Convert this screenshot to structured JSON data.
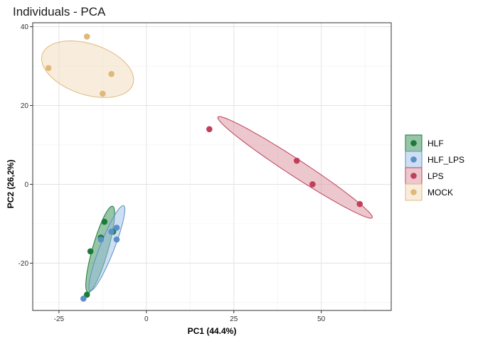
{
  "chart_data": {
    "type": "scatter",
    "title": "Individuals - PCA",
    "xlabel": "PC1 (44.4%)",
    "ylabel": "PC2 (26,2%)",
    "xlim": [
      -32.5,
      70
    ],
    "ylim": [
      -32,
      41
    ],
    "x_ticks": [
      -25,
      0,
      25,
      50
    ],
    "y_ticks": [
      -20,
      0,
      20,
      40
    ],
    "x_tick_labels": [
      "-25",
      "0",
      "25",
      "50"
    ],
    "y_tick_labels": [
      "-20",
      "0",
      "20",
      "40"
    ],
    "grid": true,
    "legend_position": "right",
    "series": [
      {
        "name": "HLF",
        "color": "#1a7a3a",
        "fill": "#2e8b4f",
        "points": [
          [
            -12,
            -9.5
          ],
          [
            -16,
            -17
          ],
          [
            -17,
            -28
          ],
          [
            -9.5,
            -12
          ],
          [
            -13,
            -13.5
          ]
        ],
        "ellipse": {
          "cx": -13.2,
          "cy": -16.5,
          "rx": 11.5,
          "ry": 2.2,
          "angle": 72
        }
      },
      {
        "name": "HLF_LPS",
        "color": "#5b8fc7",
        "fill": "#9dc0e6",
        "points": [
          [
            -18,
            -29
          ],
          [
            -8.5,
            -11
          ],
          [
            -8.5,
            -14
          ],
          [
            -10,
            -12
          ],
          [
            -13,
            -14
          ]
        ],
        "ellipse": {
          "cx": -11.3,
          "cy": -16.2,
          "rx": 11.8,
          "ry": 2.0,
          "angle": 66
        }
      },
      {
        "name": "LPS",
        "color": "#c0405a",
        "fill": "#d9909e",
        "points": [
          [
            18,
            14
          ],
          [
            43,
            6
          ],
          [
            47.5,
            0
          ],
          [
            61,
            -5
          ]
        ],
        "ellipse": {
          "cx": 42.5,
          "cy": 4.3,
          "rx": 25.5,
          "ry": 2.2,
          "angle": -30
        }
      },
      {
        "name": "MOCK",
        "color": "#e0b87a",
        "fill": "#f2dcbc",
        "points": [
          [
            -17,
            37.5
          ],
          [
            -28,
            29.5
          ],
          [
            -10,
            28
          ],
          [
            -12.5,
            23
          ]
        ],
        "ellipse": {
          "cx": -16.8,
          "cy": 29.2,
          "rx": 13.5,
          "ry": 6.5,
          "angle": -15
        }
      }
    ]
  }
}
